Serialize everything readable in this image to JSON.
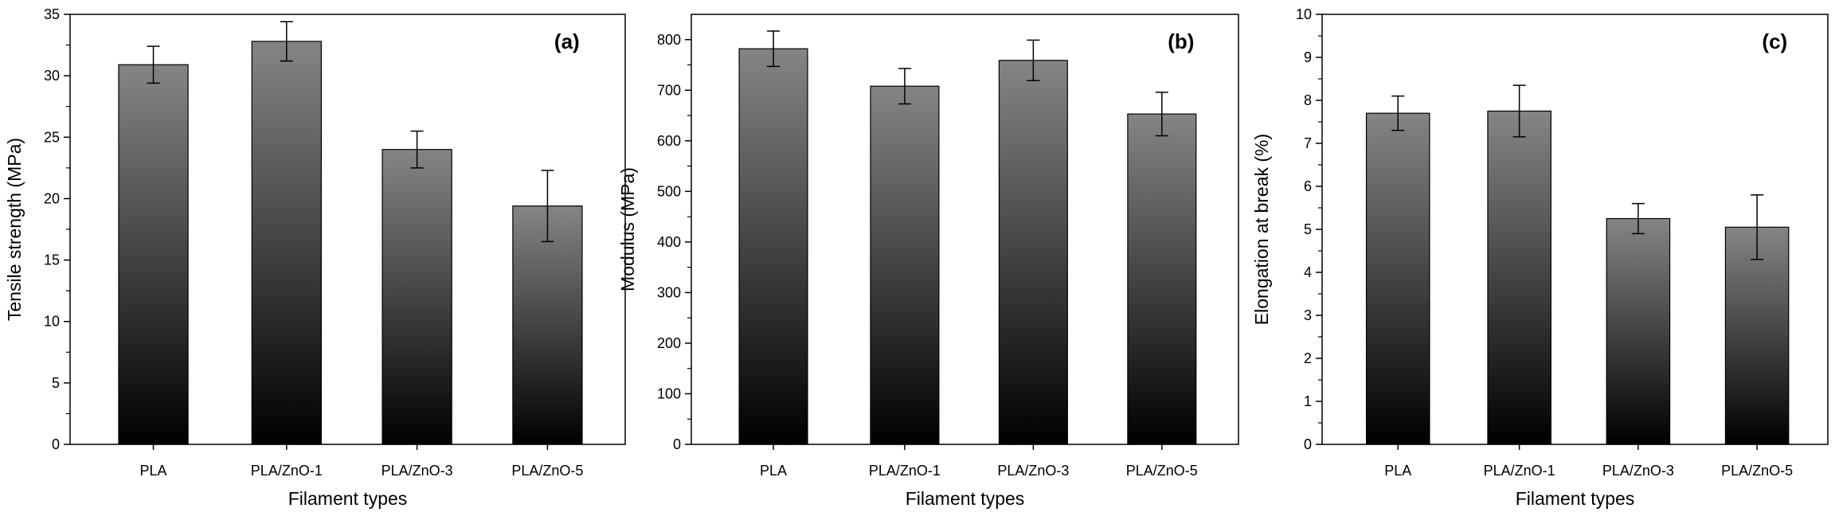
{
  "chart_data": [
    {
      "type": "bar",
      "panel_label": "(a)",
      "title": "",
      "xlabel": "Filament types",
      "ylabel": "Tensile strength (MPa)",
      "categories": [
        "PLA",
        "PLA/ZnO-1",
        "PLA/ZnO-3",
        "PLA/ZnO-5"
      ],
      "values": [
        30.9,
        32.8,
        24.0,
        19.4
      ],
      "errors": [
        1.5,
        1.6,
        1.5,
        2.9
      ],
      "ylim": [
        0,
        35
      ],
      "yticks": [
        0,
        5,
        10,
        15,
        20,
        25,
        30,
        35
      ],
      "grid": false
    },
    {
      "type": "bar",
      "panel_label": "(b)",
      "title": "",
      "xlabel": "Filament types",
      "ylabel": "Modulus (MPa)",
      "categories": [
        "PLA",
        "PLA/ZnO-1",
        "PLA/ZnO-3",
        "PLA/ZnO-5"
      ],
      "values": [
        782,
        708,
        759,
        653
      ],
      "errors": [
        35,
        35,
        40,
        43
      ],
      "ylim": [
        0,
        850
      ],
      "yticks": [
        0,
        100,
        200,
        300,
        400,
        500,
        600,
        700,
        800
      ],
      "grid": false
    },
    {
      "type": "bar",
      "panel_label": "(c)",
      "title": "",
      "xlabel": "Filament types",
      "ylabel": "Elongation at break (%)",
      "categories": [
        "PLA",
        "PLA/ZnO-1",
        "PLA/ZnO-3",
        "PLA/ZnO-5"
      ],
      "values": [
        7.7,
        7.75,
        5.25,
        5.05
      ],
      "errors": [
        0.4,
        0.6,
        0.35,
        0.75
      ],
      "ylim": [
        0,
        10
      ],
      "yticks": [
        0,
        1,
        2,
        3,
        4,
        5,
        6,
        7,
        8,
        9,
        10
      ],
      "grid": false
    }
  ]
}
